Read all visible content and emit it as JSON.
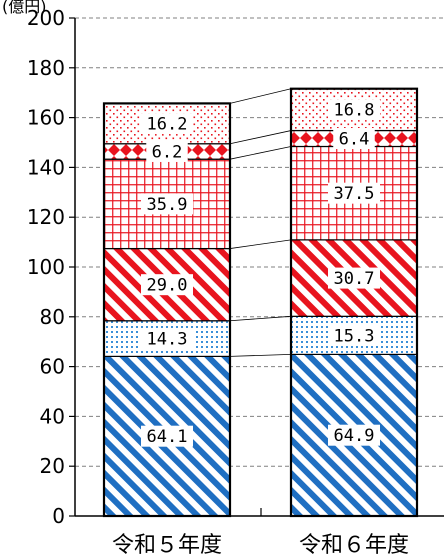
{
  "chart_data": {
    "type": "bar",
    "stacked": true,
    "unit_label": "(億円)",
    "categories": [
      "令和５年度",
      "令和６年度"
    ],
    "ylim": [
      0,
      200
    ],
    "yticks": [
      0,
      20,
      40,
      60,
      80,
      100,
      120,
      140,
      160,
      180,
      200
    ],
    "grid": true,
    "series": [
      {
        "values": [
          64.1,
          64.9
        ],
        "pattern": "diag-blue",
        "color": "#1f6fc2",
        "labels": [
          "64.1",
          "64.9"
        ]
      },
      {
        "values": [
          14.3,
          15.3
        ],
        "pattern": "dots-blue",
        "color": "#3a8fd8",
        "labels": [
          "14.3",
          "15.3"
        ]
      },
      {
        "values": [
          29.0,
          30.7
        ],
        "pattern": "diag-red",
        "color": "#e8141e",
        "labels": [
          "29.0",
          "30.7"
        ]
      },
      {
        "values": [
          35.9,
          37.5
        ],
        "pattern": "grid-red",
        "color": "#e8141e",
        "labels": [
          "35.9",
          "37.5"
        ]
      },
      {
        "values": [
          6.2,
          6.4
        ],
        "pattern": "diamond-red",
        "color": "#e8141e",
        "labels": [
          "6.2",
          "6.4"
        ]
      },
      {
        "values": [
          16.2,
          16.8
        ],
        "pattern": "dots-red",
        "color": "#e8141e",
        "labels": [
          "16.2",
          "16.8"
        ]
      }
    ]
  }
}
